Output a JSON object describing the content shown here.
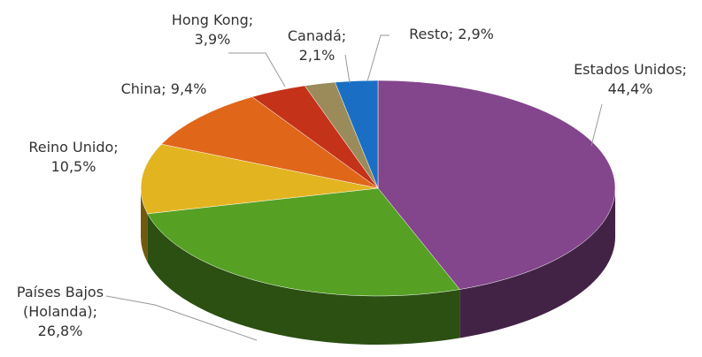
{
  "chart_data": {
    "type": "pie3d",
    "categories": [
      "Estados Unidos;",
      "Países Bajos (Holanda);",
      "Reino Unido;",
      "China;",
      "Hong Kong;",
      "Canadá;",
      "Resto;"
    ],
    "values": [
      44.4,
      26.8,
      10.5,
      9.4,
      3.9,
      2.1,
      2.9
    ],
    "value_labels": [
      "44,4%",
      "26,8%",
      "10,5%",
      "9,4%",
      "3,9%",
      "2,1%",
      "2,9%"
    ],
    "colors": [
      "#83458c",
      "#56a024",
      "#e2b420",
      "#e0661a",
      "#c4321a",
      "#9b8a5a",
      "#1a6fc4"
    ]
  }
}
